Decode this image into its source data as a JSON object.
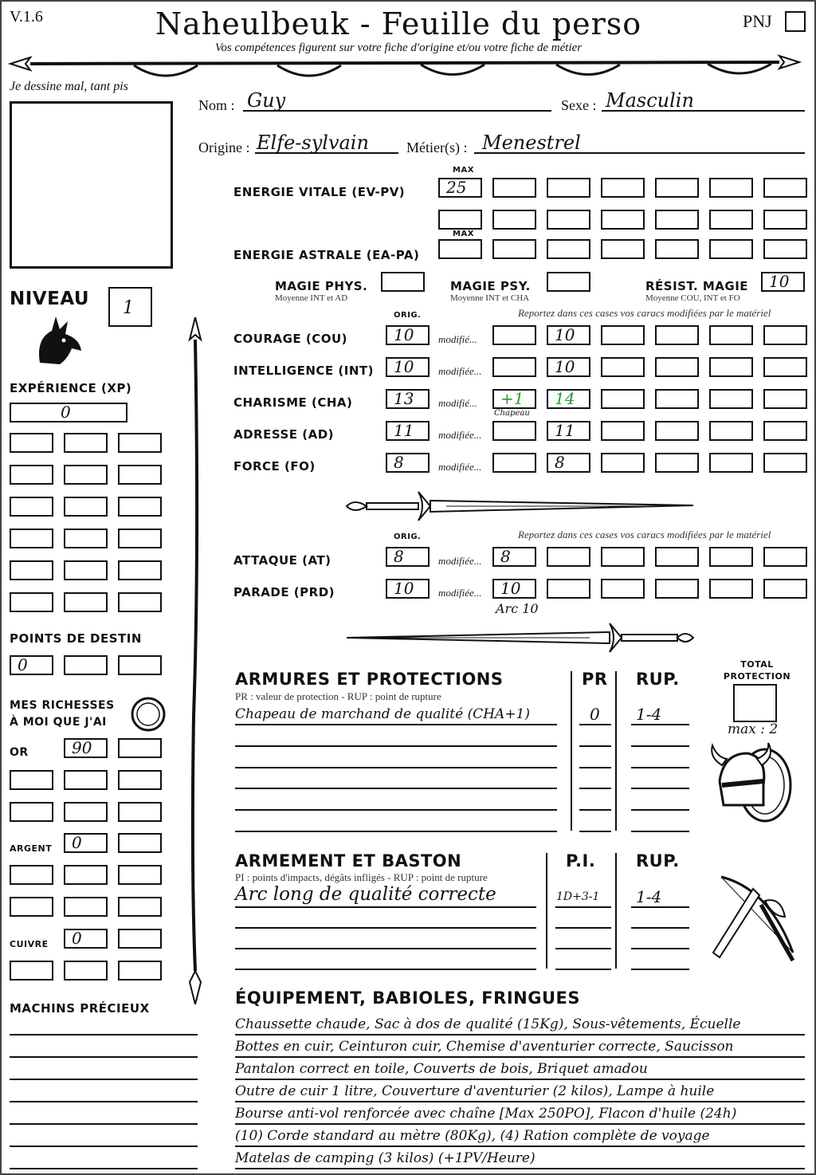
{
  "header": {
    "version": "V.1.6",
    "title": "Naheulbeuk - Feuille du perso",
    "pnj_label": "PNJ",
    "subtitle": "Vos compétences figurent sur votre fiche d'origine et/ou votre fiche de métier"
  },
  "portrait": {
    "caption": "Je dessine mal, tant pis"
  },
  "identity": {
    "nom_label": "Nom :",
    "nom": "Guy",
    "sexe_label": "Sexe :",
    "sexe": "Masculin",
    "origine_label": "Origine :",
    "origine": "Elfe-sylvain",
    "metier_label": "Métier(s) :",
    "metier": "Menestrel"
  },
  "energy": {
    "max_label": "MAX",
    "ev_label": "Energie vitale (EV-PV)",
    "ev_row1": [
      "25",
      "",
      "",
      "",
      "",
      "",
      ""
    ],
    "ev_row2": [
      "",
      "",
      "",
      "",
      "",
      "",
      ""
    ],
    "ea_label": "Energie astrale (EA-PA)",
    "ea_row": [
      "",
      "",
      "",
      "",
      "",
      "",
      ""
    ]
  },
  "magic": {
    "phys_label": "Magie phys.",
    "phys_note": "Moyenne INT et AD",
    "phys_value": "",
    "psy_label": "Magie psy.",
    "psy_note": "Moyenne INT et CHA",
    "psy_value": "",
    "resist_label": "Résist. magie",
    "resist_note": "Moyenne COU, INT et FO",
    "resist_value": "10"
  },
  "stats": {
    "orig_label": "ORIG.",
    "report_note": "Reportez dans ces cases vos caracs modifiées par le matériel",
    "rows": [
      {
        "label": "Courage (COU)",
        "orig": "10",
        "modif_label": "modifié...",
        "cells": [
          "",
          "10",
          "",
          "",
          "",
          ""
        ],
        "note": ""
      },
      {
        "label": "Intelligence (INT)",
        "orig": "10",
        "modif_label": "modifiée...",
        "cells": [
          "",
          "10",
          "",
          "",
          "",
          ""
        ],
        "note": ""
      },
      {
        "label": "Charisme (CHA)",
        "orig": "13",
        "modif_label": "modifié...",
        "cells": [
          "+1",
          "14",
          "",
          "",
          "",
          ""
        ],
        "note": "Chapeau",
        "highlight": true
      },
      {
        "label": "Adresse (AD)",
        "orig": "11",
        "modif_label": "modifiée...",
        "cells": [
          "",
          "11",
          "",
          "",
          "",
          ""
        ],
        "note": ""
      },
      {
        "label": "Force (FO)",
        "orig": "8",
        "modif_label": "modifiée...",
        "cells": [
          "",
          "8",
          "",
          "",
          "",
          ""
        ],
        "note": ""
      }
    ]
  },
  "combat": {
    "orig_label": "ORIG.",
    "report_note": "Reportez dans ces cases vos caracs modifiées par le matériel",
    "rows": [
      {
        "label": "Attaque (AT)",
        "orig": "8",
        "modif_label": "modifiée...",
        "cells": [
          "8",
          "",
          "",
          "",
          "",
          ""
        ],
        "note": ""
      },
      {
        "label": "Parade (PRD)",
        "orig": "10",
        "modif_label": "modifiée...",
        "cells": [
          "10",
          "",
          "",
          "",
          "",
          ""
        ],
        "note": "Arc 10"
      }
    ]
  },
  "armor": {
    "title": "Armures et protections",
    "note": "PR : valeur de protection - RUP : point de rupture",
    "pr_label": "PR",
    "rup_label": "RUP.",
    "rows": [
      {
        "name": "Chapeau de marchand de qualité (CHA+1)",
        "pr": "0",
        "rup": "1-4"
      },
      {
        "name": "",
        "pr": "",
        "rup": ""
      },
      {
        "name": "",
        "pr": "",
        "rup": ""
      },
      {
        "name": "",
        "pr": "",
        "rup": ""
      },
      {
        "name": "",
        "pr": "",
        "rup": ""
      },
      {
        "name": "",
        "pr": "",
        "rup": ""
      }
    ],
    "total_label": "Total protection",
    "total_value": "",
    "max_note": "max : 2"
  },
  "weapons": {
    "title": "Armement et baston",
    "note": "PI : points d'impacts, dégâts infligés - RUP : point de rupture",
    "pi_label": "P.I.",
    "rup_label": "RUP.",
    "rows": [
      {
        "name": "Arc long de qualité correcte",
        "pi": "1D+3-1",
        "rup": "1-4"
      },
      {
        "name": "",
        "pi": "",
        "rup": ""
      },
      {
        "name": "",
        "pi": "",
        "rup": ""
      },
      {
        "name": "",
        "pi": "",
        "rup": ""
      }
    ]
  },
  "equipment": {
    "title": "Équipement, babioles, fringues",
    "lines": [
      "Chaussette chaude, Sac à dos de qualité (15Kg), Sous-vêtements, Écuelle",
      "Bottes en cuir, Ceinturon cuir, Chemise d'aventurier correcte, Saucisson",
      "Pantalon correct en toile, Couverts de bois, Briquet amadou",
      "Outre de cuir 1 litre, Couverture d'aventurier (2 kilos), Lampe à huile",
      "Bourse anti-vol renforcée avec chaîne [Max 250PO], Flacon d'huile (24h)",
      "(10) Corde standard au mètre (80Kg), (4) Ration complète de voyage",
      "Matelas de camping (3 kilos) (+1PV/Heure)"
    ]
  },
  "left": {
    "niveau_label": "Niveau",
    "niveau": "1",
    "xp_label": "Expérience (XP)",
    "xp": "0",
    "xp_grid": [
      "",
      "",
      "",
      "",
      "",
      "",
      "",
      "",
      "",
      "",
      "",
      "",
      "",
      "",
      "",
      "",
      "",
      ""
    ],
    "destin_label": "Points de destin",
    "destin": [
      "0",
      "",
      ""
    ],
    "richesses_label_1": "Mes richesses",
    "richesses_label_2": "à moi que j'ai",
    "or_label": "Or",
    "or": [
      "90",
      ""
    ],
    "or_extra": [
      "",
      "",
      "",
      "",
      "",
      ""
    ],
    "argent_label": "Argent",
    "argent": [
      "0",
      ""
    ],
    "argent_extra": [
      "",
      "",
      "",
      "",
      "",
      ""
    ],
    "cuivre_label": "Cuivre",
    "cuivre": [
      "0",
      ""
    ],
    "cuivre_extra": [
      "",
      "",
      ""
    ],
    "machins_label": "Machins précieux",
    "machins": [
      "",
      "",
      "",
      "",
      "",
      "",
      ""
    ]
  },
  "colors": {
    "modified": "#2a9a2a",
    "ink": "#111111"
  }
}
